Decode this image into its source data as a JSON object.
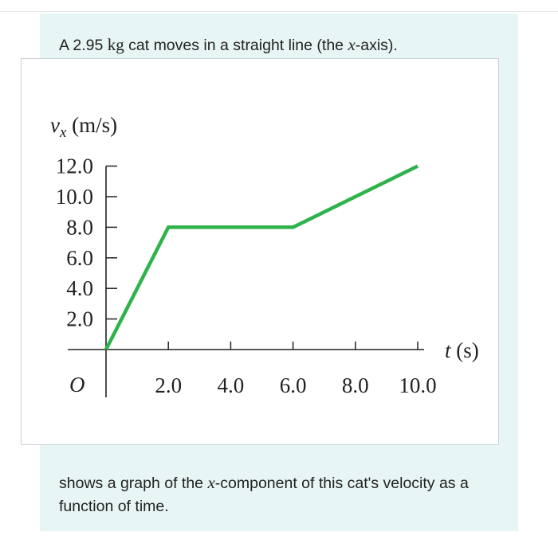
{
  "problem": {
    "intro_prefix": "A 2.95 ",
    "mass_unit": "kg",
    "intro_middle": " cat moves in a straight line (the ",
    "axis_var": "x",
    "intro_suffix": "-axis).",
    "outro_prefix": "shows a graph of the ",
    "outro_var": "x",
    "outro_suffix": "-component of this cat's velocity as a function of time."
  },
  "chart_data": {
    "type": "line",
    "ylabel_symbol": "v",
    "ylabel_sub": "x",
    "ylabel_unit": " (m/s)",
    "xlabel_symbol": "t",
    "xlabel_unit": " (s)",
    "origin_label": "O",
    "xlim": [
      0,
      10.0
    ],
    "ylim": [
      0,
      12.0
    ],
    "x_ticks": [
      "2.0",
      "4.0",
      "6.0",
      "8.0",
      "10.0"
    ],
    "x_tick_values": [
      2.0,
      4.0,
      6.0,
      8.0,
      10.0
    ],
    "y_ticks": [
      "12.0",
      "10.0",
      "8.0",
      "6.0",
      "4.0",
      "2.0"
    ],
    "y_tick_values": [
      12.0,
      10.0,
      8.0,
      6.0,
      4.0,
      2.0
    ],
    "series": [
      {
        "color": "#2db34a",
        "points": [
          [
            0,
            0
          ],
          [
            2.0,
            8.0
          ],
          [
            6.0,
            8.0
          ],
          [
            10.0,
            12.0
          ]
        ]
      }
    ],
    "grid": false
  }
}
